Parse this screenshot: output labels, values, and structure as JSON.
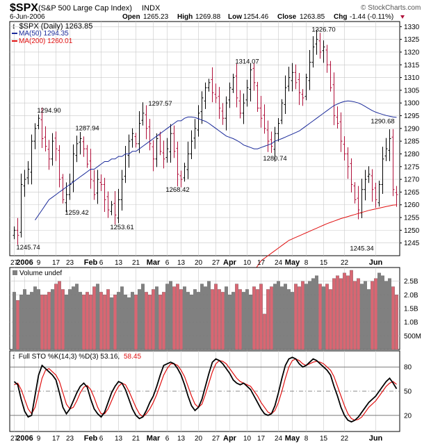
{
  "header": {
    "symbol": "$SPX",
    "name": "(S&P 500 Large Cap Index)",
    "exchange": "INDX",
    "source": "© StockCharts.com",
    "date": "6-Jun-2006",
    "open_label": "Open",
    "open": "1265.23",
    "high_label": "High",
    "high": "1269.88",
    "low_label": "Low",
    "low": "1254.46",
    "close_label": "Close",
    "close": "1263.85",
    "chg_label": "Chg",
    "chg": "-1.44 (-0.11%)"
  },
  "legend": {
    "price": "$SPX (Daily) 1263.85",
    "ma50": "MA(50) 1294.35",
    "ma200": "MA(200) 1260.01",
    "volume": "Volume undef",
    "sto": "Full STO %K(14,3) %D(3) 53.16,",
    "sto_d": "58.45"
  },
  "colors": {
    "up": "#000000",
    "down": "#b0103a",
    "ma50": "#1a2a9a",
    "ma200": "#e01010",
    "vol_up": "#808080",
    "vol_down": "#d96672",
    "sto_k": "#000000",
    "sto_d": "#e01010",
    "grid": "#c8c8c8"
  },
  "chart_data": [
    {
      "type": "ohlc",
      "title": "$SPX (S&P 500 Large Cap Index)",
      "ylim": [
        1240,
        1332
      ],
      "yticks": [
        1245,
        1250,
        1255,
        1260,
        1265,
        1270,
        1275,
        1280,
        1285,
        1290,
        1295,
        1300,
        1305,
        1310,
        1315,
        1320,
        1325,
        1330
      ],
      "x_tick_labels": [
        "27",
        "2006",
        "9",
        "17",
        "23",
        "Feb",
        "6",
        "13",
        "21",
        "Mar",
        "6",
        "13",
        "20",
        "27",
        "Apr",
        "10",
        "17",
        "24",
        "May",
        "8",
        "15",
        "22",
        "Jun"
      ],
      "annotations": [
        "1245.74",
        "1294.90",
        "1287.94",
        "1259.42",
        "1253.61",
        "1297.57",
        "1268.42",
        "1314.07",
        "1280.74",
        "1326.70",
        "1245.34",
        "1290.68"
      ],
      "close": [
        1250,
        1248,
        1268,
        1270,
        1274,
        1285,
        1290,
        1294,
        1286,
        1283,
        1278,
        1285,
        1282,
        1270,
        1262,
        1264,
        1268,
        1280,
        1284,
        1286,
        1282,
        1276,
        1270,
        1264,
        1270,
        1268,
        1262,
        1258,
        1260,
        1256,
        1262,
        1270,
        1280,
        1285,
        1288,
        1284,
        1292,
        1296,
        1290,
        1284,
        1278,
        1286,
        1281,
        1278,
        1282,
        1288,
        1281,
        1272,
        1270,
        1275,
        1280,
        1285,
        1290,
        1296,
        1302,
        1306,
        1308,
        1304,
        1302,
        1298,
        1294,
        1300,
        1306,
        1310,
        1302,
        1296,
        1300,
        1306,
        1313,
        1308,
        1298,
        1294,
        1290,
        1285,
        1283,
        1288,
        1292,
        1300,
        1306,
        1310,
        1312,
        1308,
        1304,
        1302,
        1310,
        1316,
        1322,
        1325,
        1320,
        1322,
        1315,
        1306,
        1295,
        1292,
        1285,
        1280,
        1275,
        1268,
        1262,
        1258,
        1266,
        1270,
        1272,
        1266,
        1262,
        1268,
        1278,
        1282,
        1286,
        1266,
        1264
      ]
    },
    {
      "type": "line",
      "name": "MA(50)",
      "note": "50-day moving average",
      "values": [
        1254,
        1256,
        1258,
        1260,
        1262,
        1263,
        1264,
        1265,
        1266,
        1267,
        1268,
        1269,
        1270,
        1271,
        1272,
        1273,
        1274,
        1274,
        1275,
        1276,
        1277,
        1277,
        1278,
        1278,
        1279,
        1279,
        1280,
        1280,
        1281,
        1281,
        1282,
        1283,
        1284,
        1285,
        1286,
        1287,
        1288,
        1289,
        1290,
        1291,
        1292,
        1293,
        1293,
        1294,
        1294.5,
        1294.5,
        1294.3,
        1293.8,
        1293.3,
        1292.8,
        1292,
        1291,
        1290,
        1289,
        1288,
        1287,
        1286.5,
        1286,
        1285.3,
        1284.5,
        1283.5,
        1283,
        1282.5,
        1282,
        1282,
        1282.5,
        1283,
        1283.5,
        1284,
        1285,
        1285.5,
        1286,
        1286.6,
        1287.2,
        1287.8,
        1288.4,
        1289,
        1290,
        1291,
        1292,
        1293,
        1294,
        1295,
        1296,
        1297,
        1298,
        1299,
        1299.6,
        1300.2,
        1300.6,
        1300.8,
        1300.7,
        1300.4,
        1300,
        1299.4,
        1298.6,
        1297.8,
        1297,
        1296.4,
        1295.9,
        1295.5,
        1295.1,
        1294.8,
        1294.5,
        1294.35
      ]
    },
    {
      "type": "line",
      "name": "MA(200)",
      "values": [
        1226,
        1228,
        1231,
        1234,
        1236,
        1238,
        1239,
        1240,
        1241,
        1242,
        1243,
        1244,
        1245,
        1246,
        1246.6,
        1247.2,
        1247.8,
        1248.4,
        1249,
        1249.6,
        1250.2,
        1250.8,
        1251.4,
        1252,
        1252.6,
        1253.1,
        1253.6,
        1254.1,
        1254.6,
        1255,
        1255.4,
        1255.8,
        1256.2,
        1256.6,
        1257,
        1257.4,
        1257.8,
        1258.1,
        1258.4,
        1258.7,
        1259,
        1259.3,
        1259.6,
        1259.9,
        1260.01
      ]
    },
    {
      "type": "bar",
      "name": "Volume",
      "ylim": [
        0,
        3000000000
      ],
      "ytick_labels": [
        "2.5B",
        "2.0B",
        "1.5B",
        "1.0B",
        "500M"
      ],
      "values": [
        2.1,
        1.8,
        2.0,
        2.2,
        2.0,
        2.1,
        2.3,
        2.2,
        2.0,
        2.0,
        2.1,
        2.2,
        2.4,
        2.5,
        2.2,
        2.0,
        2.2,
        2.3,
        2.4,
        2.1,
        2.0,
        2.1,
        2.0,
        2.3,
        2.4,
        2.1,
        2.0,
        2.2,
        1.9,
        2.0,
        2.1,
        2.3,
        2.0,
        1.9,
        2.1,
        2.0,
        2.2,
        2.4,
        2.1,
        2.0,
        2.2,
        2.3,
        2.0,
        2.1,
        2.4,
        2.5,
        2.3,
        2.4,
        2.2,
        2.3,
        2.1,
        2.0,
        2.2,
        2.1,
        2.4,
        2.3,
        2.5,
        2.2,
        2.4,
        2.2,
        2.1,
        2.3,
        2.0,
        2.1,
        2.4,
        2.2,
        2.1,
        2.2,
        2.0,
        2.3,
        2.2,
        2.4,
        1.3,
        2.2,
        2.3,
        2.4,
        2.5,
        2.3,
        2.4,
        2.2,
        2.1,
        2.4,
        2.3,
        2.5,
        2.4,
        2.5,
        2.6,
        2.7,
        2.4,
        2.3,
        2.4,
        2.2,
        2.6,
        2.7,
        2.6,
        2.8,
        2.7,
        2.9,
        2.5,
        2.6,
        2.4,
        2.5,
        2.2,
        2.5,
        2.6,
        2.8,
        2.7,
        2.5,
        2.6,
        2.3,
        2.0
      ],
      "unit": "billion"
    },
    {
      "type": "line",
      "name": "Full STO %K(14,3) %D(3)",
      "ylim": [
        0,
        100
      ],
      "yticks": [
        20,
        50,
        80
      ],
      "k": [
        62,
        58,
        40,
        25,
        18,
        20,
        45,
        70,
        82,
        78,
        74,
        70,
        64,
        48,
        30,
        22,
        28,
        38,
        48,
        56,
        60,
        55,
        40,
        28,
        22,
        18,
        24,
        36,
        48,
        56,
        62,
        60,
        52,
        40,
        28,
        20,
        16,
        18,
        26,
        36,
        44,
        56,
        70,
        82,
        84,
        86,
        84,
        78,
        70,
        58,
        44,
        32,
        26,
        30,
        40,
        56,
        72,
        86,
        90,
        88,
        84,
        78,
        72,
        64,
        60,
        58,
        60,
        56,
        52,
        44,
        36,
        28,
        22,
        20,
        22,
        32,
        48,
        66,
        82,
        90,
        92,
        90,
        84,
        80,
        82,
        86,
        90,
        88,
        84,
        80,
        76,
        70,
        56,
        44,
        30,
        20,
        14,
        12,
        14,
        18,
        24,
        30,
        36,
        40,
        44,
        50,
        56,
        62,
        66,
        60,
        53
      ],
      "d": [
        58,
        60,
        52,
        40,
        28,
        22,
        30,
        48,
        66,
        76,
        78,
        74,
        70,
        62,
        48,
        34,
        28,
        30,
        38,
        48,
        55,
        57,
        52,
        42,
        30,
        22,
        22,
        28,
        38,
        48,
        56,
        60,
        58,
        50,
        40,
        30,
        22,
        18,
        22,
        28,
        36,
        46,
        58,
        70,
        78,
        84,
        84,
        82,
        76,
        68,
        56,
        44,
        34,
        30,
        34,
        46,
        60,
        74,
        84,
        88,
        87,
        84,
        78,
        72,
        66,
        62,
        60,
        58,
        56,
        50,
        44,
        36,
        30,
        24,
        22,
        26,
        36,
        50,
        66,
        80,
        88,
        90,
        88,
        84,
        82,
        84,
        86,
        87,
        86,
        84,
        80,
        76,
        68,
        56,
        44,
        32,
        22,
        16,
        14,
        15,
        18,
        24,
        30,
        34,
        38,
        44,
        50,
        56,
        60,
        62,
        58.45
      ]
    }
  ]
}
